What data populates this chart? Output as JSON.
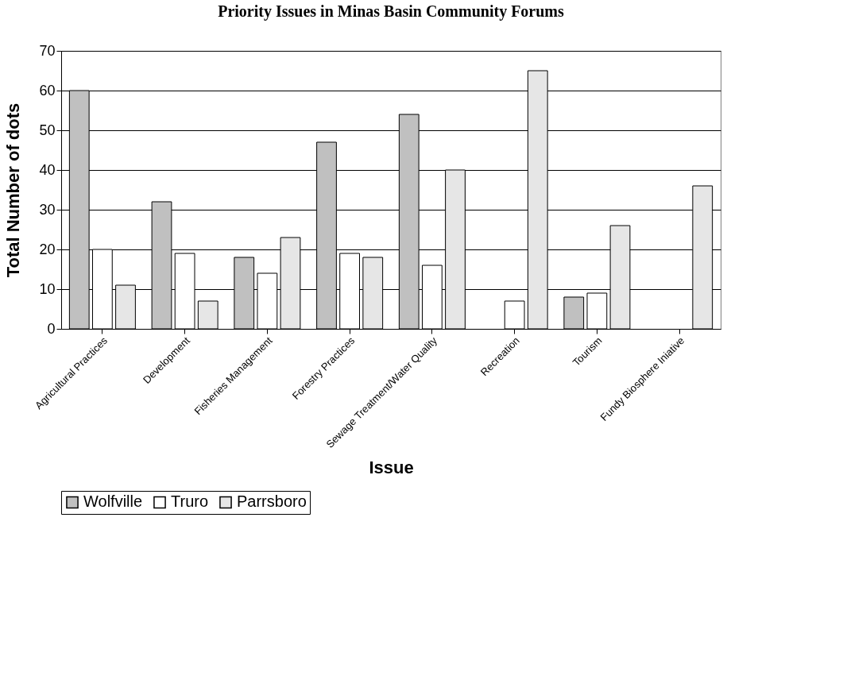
{
  "chart_data": {
    "type": "bar",
    "title": "Priority Issues in Minas Basin Community Forums",
    "xlabel": "Issue",
    "ylabel": "Total Number of dots",
    "categories": [
      "Agricultural Practices",
      "Development",
      "Fisheries Management",
      "Forestry Practices",
      "Sewage Treatment/Water Quality",
      "Recreation",
      "Tourism",
      "Fundy Biosphere Iniative"
    ],
    "series": [
      {
        "name": "Wolfville",
        "color": "#c0c0c0",
        "values": [
          60,
          32,
          18,
          47,
          54,
          null,
          8,
          null
        ]
      },
      {
        "name": "Truro",
        "color": "#ffffff",
        "values": [
          20,
          19,
          14,
          19,
          16,
          7,
          9,
          null
        ]
      },
      {
        "name": "Parrsboro",
        "color": "#e6e6e6",
        "values": [
          11,
          7,
          23,
          18,
          40,
          65,
          26,
          36
        ]
      }
    ],
    "ylim": [
      0,
      70
    ],
    "yticks": [
      0,
      10,
      20,
      30,
      40,
      50,
      60,
      70
    ],
    "grid": "y",
    "legend": "bottom"
  }
}
